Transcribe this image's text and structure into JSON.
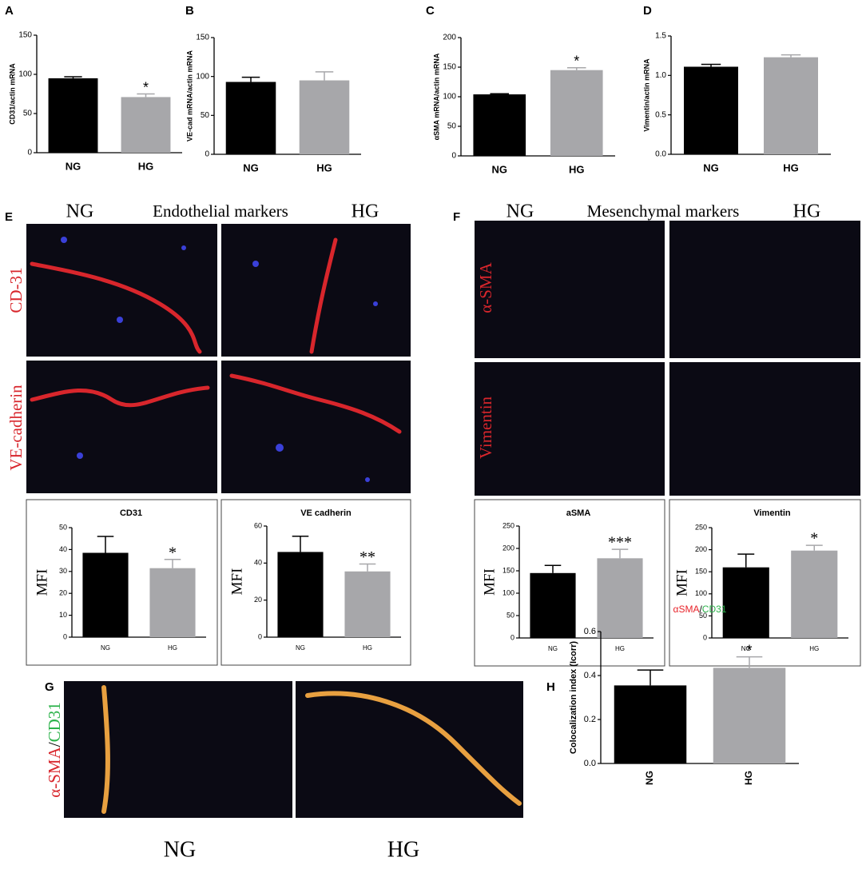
{
  "panel_letters": [
    "A",
    "B",
    "C",
    "D",
    "E",
    "F",
    "G",
    "H"
  ],
  "panel_e": {
    "columns": [
      "NG",
      "HG"
    ],
    "title": "Endothelial markers",
    "rows": [
      "CD-31",
      "VE-cadherin"
    ]
  },
  "panel_f": {
    "columns": [
      "NG",
      "HG"
    ],
    "title": "Mesenchymal markers",
    "rows": [
      "α-SMA",
      "Vimentin"
    ]
  },
  "panel_g": {
    "row_label": [
      "α-SMA",
      "/",
      "CD31"
    ],
    "columns": [
      "NG",
      "HG"
    ]
  },
  "chart_data": [
    {
      "type": "bar",
      "ylabel": "CD31/actin mRNA",
      "categories": [
        "NG",
        "HG"
      ],
      "values": [
        95,
        71
      ],
      "errors": [
        2,
        4
      ],
      "colors": [
        "#000000",
        "#a7a7aa"
      ],
      "ylim": [
        0,
        150
      ],
      "yticks": [
        0,
        50,
        100,
        150
      ],
      "annotations": [
        {
          "category": "HG",
          "text": "*"
        }
      ]
    },
    {
      "type": "bar",
      "ylabel": "VE-cad mRNA/actin mRNA",
      "categories": [
        "NG",
        "HG"
      ],
      "values": [
        93,
        95
      ],
      "errors": [
        6,
        11
      ],
      "colors": [
        "#000000",
        "#a7a7aa"
      ],
      "ylim": [
        0,
        150
      ],
      "yticks": [
        0,
        50,
        100,
        150
      ]
    },
    {
      "type": "bar",
      "ylabel": "αSMA mRNA/actin mRNA",
      "categories": [
        "NG",
        "HG"
      ],
      "values": [
        104,
        145
      ],
      "errors": [
        1,
        4
      ],
      "colors": [
        "#000000",
        "#a7a7aa"
      ],
      "ylim": [
        0,
        200
      ],
      "yticks": [
        0,
        50,
        100,
        150,
        200
      ],
      "annotations": [
        {
          "category": "HG",
          "text": "*"
        }
      ]
    },
    {
      "type": "bar",
      "ylabel": "Vimentin/actin mRNA",
      "categories": [
        "NG",
        "HG"
      ],
      "values": [
        1.11,
        1.23
      ],
      "errors": [
        0.03,
        0.03
      ],
      "colors": [
        "#000000",
        "#a7a7aa"
      ],
      "ylim": [
        0,
        1.5
      ],
      "yticks": [
        {
          "value": 0,
          "label": "0.0"
        },
        0.5,
        {
          "value": 1,
          "label": "1.0"
        },
        1.5
      ]
    },
    {
      "type": "bar",
      "title": "CD31",
      "ylabel": "MFI",
      "categories": [
        "NG",
        "HG"
      ],
      "values": [
        38.5,
        31.5
      ],
      "errors": [
        7.5,
        4
      ],
      "colors": [
        "#000000",
        "#a7a7aa"
      ],
      "ylim": [
        0,
        50
      ],
      "yticks": [
        0,
        10,
        20,
        30,
        40,
        50
      ],
      "annotations": [
        {
          "category": "HG",
          "text": "*"
        }
      ]
    },
    {
      "type": "bar",
      "title": "VE cadherin",
      "ylabel": "MFI",
      "categories": [
        "NG",
        "HG"
      ],
      "values": [
        46,
        35.5
      ],
      "errors": [
        8.5,
        4
      ],
      "colors": [
        "#000000",
        "#a7a7aa"
      ],
      "ylim": [
        0,
        60
      ],
      "yticks": [
        0,
        20,
        40,
        60
      ],
      "annotations": [
        {
          "category": "HG",
          "text": "**"
        }
      ]
    },
    {
      "type": "bar",
      "title": "aSMA",
      "ylabel": "MFI",
      "categories": [
        "NG",
        "HG"
      ],
      "values": [
        145,
        178
      ],
      "errors": [
        17,
        20
      ],
      "colors": [
        "#000000",
        "#a7a7aa"
      ],
      "ylim": [
        0,
        250
      ],
      "yticks": [
        0,
        50,
        100,
        150,
        200,
        250
      ],
      "annotations": [
        {
          "category": "HG",
          "text": "***"
        }
      ]
    },
    {
      "type": "bar",
      "title": "Vimentin",
      "ylabel": "MFI",
      "categories": [
        "NG",
        "HG"
      ],
      "values": [
        160,
        198
      ],
      "errors": [
        30,
        12
      ],
      "colors": [
        "#000000",
        "#a7a7aa"
      ],
      "ylim": [
        0,
        250
      ],
      "yticks": [
        0,
        50,
        100,
        150,
        200,
        250
      ],
      "annotations": [
        {
          "category": "HG",
          "text": "*"
        }
      ]
    },
    {
      "type": "bar",
      "title": [
        "αSMA",
        "/",
        "CD31"
      ],
      "title_colors": [
        "#e8232a",
        "#000000",
        "#2bb24a"
      ],
      "ylabel": "Colocalization index (Icorr)",
      "categories": [
        "NG",
        "HG"
      ],
      "values": [
        0.355,
        0.435
      ],
      "errors": [
        0.07,
        0.05
      ],
      "colors": [
        "#000000",
        "#a7a7aa"
      ],
      "ylim": [
        0,
        0.6
      ],
      "yticks": [
        {
          "value": 0,
          "label": "0.0"
        },
        0.2,
        0.4,
        0.6
      ],
      "annotations": [
        {
          "category": "HG",
          "text": "*"
        }
      ]
    }
  ]
}
